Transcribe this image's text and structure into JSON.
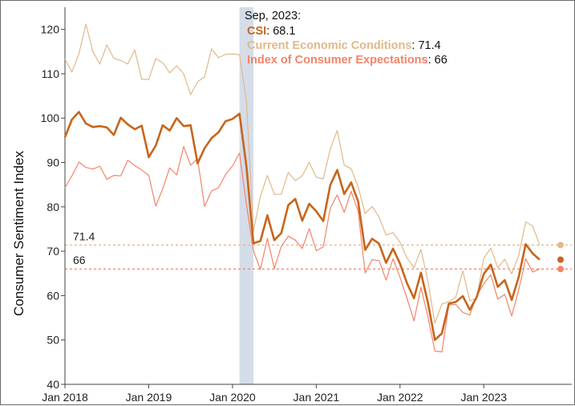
{
  "chart_data": {
    "type": "line",
    "ylabel": "Consumer Sentiment Index",
    "ylim": [
      40,
      125
    ],
    "yticks": [
      40,
      50,
      60,
      70,
      80,
      90,
      100,
      110,
      120
    ],
    "xticks": [
      {
        "label": "Jan 2018",
        "date": "2018-01"
      },
      {
        "label": "Jan 2019",
        "date": "2019-01"
      },
      {
        "label": "Jan 2020",
        "date": "2020-01"
      },
      {
        "label": "Jan 2021",
        "date": "2021-01"
      },
      {
        "label": "Jan 2022",
        "date": "2022-01"
      },
      {
        "label": "Jan 2023",
        "date": "2023-01"
      }
    ],
    "x_start": "2018-01",
    "x_end": "2023-12",
    "shaded_period": [
      "2020-02",
      "2020-04"
    ],
    "colors": {
      "csi": "#c8651b",
      "cec": "#e0b98a",
      "ice": "#f4836a",
      "shade": "#d5dde9",
      "text": "#111111"
    },
    "series": [
      {
        "key": "csi",
        "name": "CSI",
        "x": [
          "2018-01",
          "2018-02",
          "2018-03",
          "2018-04",
          "2018-05",
          "2018-06",
          "2018-07",
          "2018-08",
          "2018-09",
          "2018-10",
          "2018-11",
          "2018-12",
          "2019-01",
          "2019-02",
          "2019-03",
          "2019-04",
          "2019-05",
          "2019-06",
          "2019-07",
          "2019-08",
          "2019-09",
          "2019-10",
          "2019-11",
          "2019-12",
          "2020-01",
          "2020-02",
          "2020-03",
          "2020-04",
          "2020-05",
          "2020-06",
          "2020-07",
          "2020-08",
          "2020-09",
          "2020-10",
          "2020-11",
          "2020-12",
          "2021-01",
          "2021-02",
          "2021-03",
          "2021-04",
          "2021-05",
          "2021-06",
          "2021-07",
          "2021-08",
          "2021-09",
          "2021-10",
          "2021-11",
          "2021-12",
          "2022-01",
          "2022-02",
          "2022-03",
          "2022-04",
          "2022-05",
          "2022-06",
          "2022-07",
          "2022-08",
          "2022-09",
          "2022-10",
          "2022-11",
          "2022-12",
          "2023-01",
          "2023-02",
          "2023-03",
          "2023-04",
          "2023-05",
          "2023-06",
          "2023-07",
          "2023-08",
          "2023-09"
        ],
        "values": [
          95.7,
          99.7,
          101.4,
          98.8,
          98.0,
          98.2,
          97.9,
          96.2,
          100.1,
          98.6,
          97.5,
          98.3,
          91.2,
          93.8,
          98.4,
          97.2,
          100.0,
          98.2,
          98.4,
          89.8,
          93.2,
          95.5,
          96.8,
          99.3,
          99.8,
          101.0,
          89.1,
          71.8,
          72.3,
          78.1,
          72.5,
          74.1,
          80.4,
          81.8,
          76.9,
          80.7,
          79.0,
          76.8,
          84.9,
          88.3,
          82.9,
          85.5,
          81.2,
          70.3,
          72.8,
          71.7,
          67.4,
          70.6,
          67.2,
          62.8,
          59.4,
          65.2,
          58.4,
          50.0,
          51.5,
          58.2,
          58.6,
          59.9,
          56.8,
          59.7,
          64.9,
          67.0,
          62.0,
          63.5,
          59.0,
          64.2,
          71.6,
          69.5,
          68.1
        ]
      },
      {
        "key": "cec",
        "name": "Current Economic Conditions",
        "x": [
          "2018-01",
          "2018-02",
          "2018-03",
          "2018-04",
          "2018-05",
          "2018-06",
          "2018-07",
          "2018-08",
          "2018-09",
          "2018-10",
          "2018-11",
          "2018-12",
          "2019-01",
          "2019-02",
          "2019-03",
          "2019-04",
          "2019-05",
          "2019-06",
          "2019-07",
          "2019-08",
          "2019-09",
          "2019-10",
          "2019-11",
          "2019-12",
          "2020-01",
          "2020-02",
          "2020-03",
          "2020-04",
          "2020-05",
          "2020-06",
          "2020-07",
          "2020-08",
          "2020-09",
          "2020-10",
          "2020-11",
          "2020-12",
          "2021-01",
          "2021-02",
          "2021-03",
          "2021-04",
          "2021-05",
          "2021-06",
          "2021-07",
          "2021-08",
          "2021-09",
          "2021-10",
          "2021-11",
          "2021-12",
          "2022-01",
          "2022-02",
          "2022-03",
          "2022-04",
          "2022-05",
          "2022-06",
          "2022-07",
          "2022-08",
          "2022-09",
          "2022-10",
          "2022-11",
          "2022-12",
          "2023-01",
          "2023-02",
          "2023-03",
          "2023-04",
          "2023-05",
          "2023-06",
          "2023-07",
          "2023-08",
          "2023-09"
        ],
        "values": [
          113.3,
          110.4,
          114.5,
          121.2,
          115.0,
          112.2,
          116.5,
          113.5,
          113.0,
          112.2,
          115.4,
          108.8,
          108.7,
          113.4,
          112.5,
          110.2,
          111.8,
          110.0,
          105.3,
          108.2,
          109.3,
          115.6,
          113.6,
          114.4,
          114.5,
          114.3,
          103.8,
          74.5,
          82.4,
          87.1,
          82.8,
          82.9,
          87.8,
          85.9,
          87.0,
          90.0,
          86.7,
          86.3,
          93.0,
          97.2,
          89.4,
          88.6,
          84.5,
          78.5,
          80.1,
          77.7,
          73.6,
          74.2,
          72.0,
          68.5,
          66.3,
          70.4,
          63.3,
          53.8,
          58.1,
          58.6,
          59.7,
          65.6,
          58.8,
          59.4,
          68.4,
          70.7,
          66.3,
          68.2,
          64.9,
          69.0,
          76.6,
          75.7,
          71.4
        ]
      },
      {
        "key": "ice",
        "name": "Index of Consumer Expectations",
        "x": [
          "2018-01",
          "2018-02",
          "2018-03",
          "2018-04",
          "2018-05",
          "2018-06",
          "2018-07",
          "2018-08",
          "2018-09",
          "2018-10",
          "2018-11",
          "2018-12",
          "2019-01",
          "2019-02",
          "2019-03",
          "2019-04",
          "2019-05",
          "2019-06",
          "2019-07",
          "2019-08",
          "2019-09",
          "2019-10",
          "2019-11",
          "2019-12",
          "2020-01",
          "2020-02",
          "2020-03",
          "2020-04",
          "2020-05",
          "2020-06",
          "2020-07",
          "2020-08",
          "2020-09",
          "2020-10",
          "2020-11",
          "2020-12",
          "2021-01",
          "2021-02",
          "2021-03",
          "2021-04",
          "2021-05",
          "2021-06",
          "2021-07",
          "2021-08",
          "2021-09",
          "2021-10",
          "2021-11",
          "2021-12",
          "2022-01",
          "2022-02",
          "2022-03",
          "2022-04",
          "2022-05",
          "2022-06",
          "2022-07",
          "2022-08",
          "2022-09",
          "2022-10",
          "2022-11",
          "2022-12",
          "2023-01",
          "2023-02",
          "2023-03",
          "2023-04",
          "2023-05",
          "2023-06",
          "2023-07",
          "2023-08",
          "2023-09"
        ],
        "values": [
          84.3,
          87.0,
          90.1,
          88.9,
          88.5,
          89.2,
          86.2,
          87.1,
          87.0,
          90.5,
          89.3,
          88.3,
          87.1,
          80.2,
          84.1,
          88.8,
          87.2,
          93.6,
          89.4,
          90.8,
          80.1,
          83.6,
          84.3,
          87.3,
          89.2,
          92.1,
          80.6,
          70.1,
          65.9,
          72.9,
          66.1,
          71.1,
          73.4,
          72.5,
          70.6,
          75.1,
          70.1,
          71.0,
          79.7,
          82.7,
          78.8,
          83.5,
          79.0,
          65.1,
          68.1,
          67.9,
          63.5,
          68.3,
          64.1,
          59.4,
          54.3,
          61.9,
          55.2,
          47.5,
          47.3,
          57.9,
          58.0,
          56.2,
          55.6,
          60.0,
          62.7,
          64.7,
          59.2,
          60.3,
          55.4,
          61.3,
          68.3,
          65.3,
          66.0
        ]
      }
    ],
    "reference_lines": [
      {
        "key": "cec",
        "value": 71.4,
        "label": "71.4"
      },
      {
        "key": "ice",
        "value": 66,
        "label": "66"
      }
    ],
    "endpoints": [
      {
        "key": "cec",
        "date": "2023-12",
        "value": 71.4
      },
      {
        "key": "csi",
        "date": "2023-12",
        "value": 68.1
      },
      {
        "key": "ice",
        "date": "2023-12",
        "value": 66
      }
    ],
    "annotation": {
      "date_label": "Sep, 2023:",
      "lines": [
        {
          "key": "csi",
          "name": "CSI",
          "value": "68.1"
        },
        {
          "key": "cec",
          "name": "Current Economic Conditions",
          "value": "71.4"
        },
        {
          "key": "ice",
          "name": "Index of Consumer Expectations",
          "value": "66"
        }
      ]
    }
  }
}
